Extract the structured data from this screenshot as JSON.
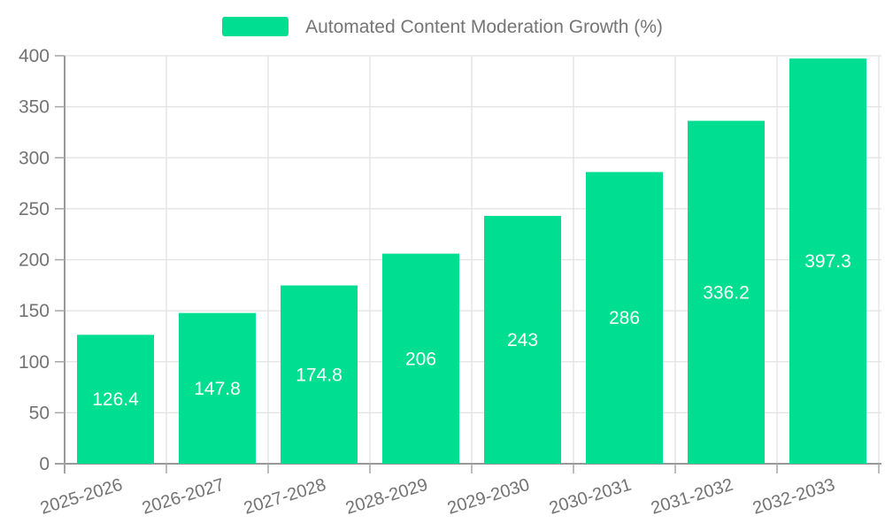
{
  "chart_data": {
    "type": "bar",
    "title": "Automated Content Moderation Growth (%)",
    "categories": [
      "2025-2026",
      "2026-2027",
      "2027-2028",
      "2028-2029",
      "2029-2030",
      "2030-2031",
      "2031-2032",
      "2032-2033"
    ],
    "values": [
      126.4,
      147.8,
      174.8,
      206,
      243,
      286,
      336.2,
      397.3
    ],
    "xlabel": "",
    "ylabel": "",
    "ylim": [
      0,
      400
    ],
    "ytick_step": 50,
    "yticks": [
      0,
      50,
      100,
      150,
      200,
      250,
      300,
      350,
      400
    ],
    "grid": true,
    "legend_position": "top-center",
    "bar_color": "#00DE91",
    "bar_label_color": "#FFFFFF",
    "axis_color": "#999999",
    "tick_color": "#A6A6A6",
    "grid_color": "#E2E2E2",
    "tick_label_color": "#737373",
    "legend_text_color": "#757575",
    "background_color": "#FFFFFF"
  }
}
